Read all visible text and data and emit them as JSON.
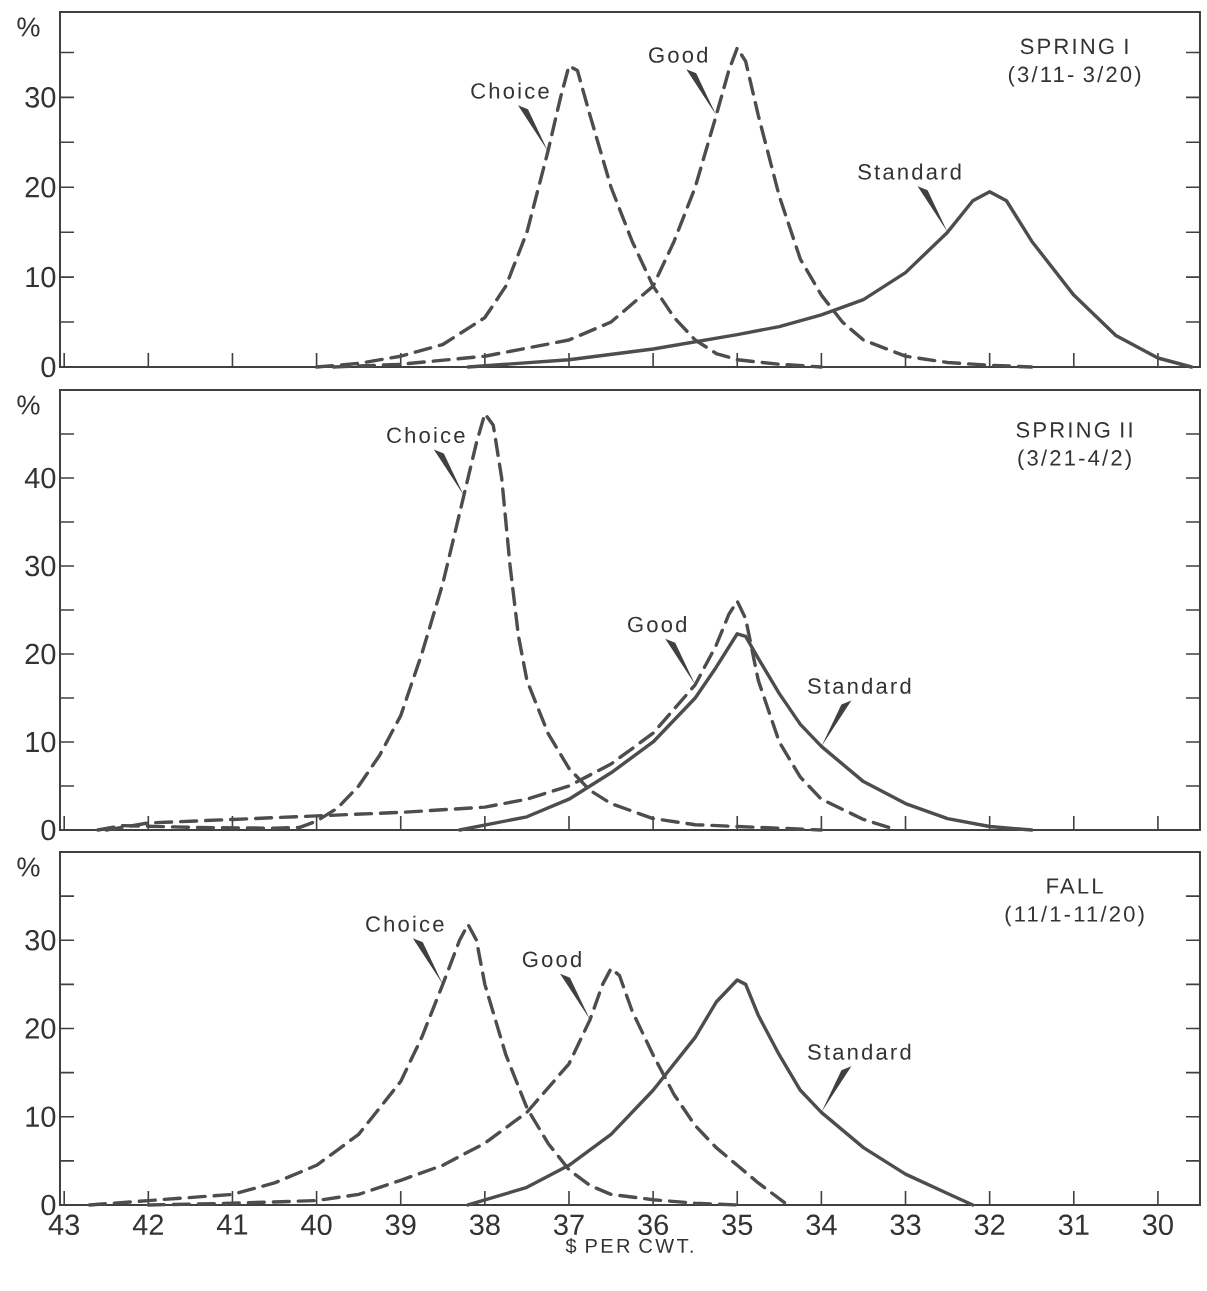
{
  "chart_data": [
    {
      "type": "line",
      "title": "SPRING I",
      "subtitle": "(3/11- 3/20)",
      "ylabel": "%",
      "xlim": [
        43.05,
        29.5
      ],
      "xticks": [
        43,
        42,
        41,
        40,
        39,
        38,
        37,
        36,
        35,
        34,
        33,
        32,
        31,
        30
      ],
      "ylim": [
        0,
        39.5
      ],
      "yticks": [
        0,
        {
          "value": 5,
          "label": null
        },
        10,
        {
          "value": 15,
          "label": null
        },
        20,
        {
          "value": 25,
          "label": null
        },
        30,
        {
          "value": 35,
          "label": null
        }
      ],
      "tick_labels": "y",
      "series": [
        {
          "name": "Choice",
          "color": "#4d4d4d",
          "line_style": "dashed",
          "x": [
            40,
            39.5,
            39,
            38.5,
            38,
            37.75,
            37.5,
            37.25,
            37.1,
            37,
            36.9,
            36.75,
            36.5,
            36.25,
            36,
            35.75,
            35.5,
            35.25,
            35,
            34.5,
            34
          ],
          "values": [
            0,
            0.4,
            1.2,
            2.5,
            5.5,
            9,
            15,
            24,
            30,
            33.5,
            33,
            28,
            20,
            14,
            9,
            5.5,
            3,
            1.5,
            0.8,
            0.3,
            0
          ]
        },
        {
          "name": "Good",
          "color": "#4d4d4d",
          "line_style": "dashed",
          "x": [
            39.8,
            39,
            38,
            37,
            36.5,
            36,
            35.75,
            35.5,
            35.25,
            35.1,
            35,
            34.9,
            34.75,
            34.5,
            34.25,
            34,
            33.75,
            33.5,
            33,
            32.5,
            32,
            31.5
          ],
          "values": [
            0,
            0.3,
            1.2,
            3,
            5,
            9,
            14,
            20,
            28,
            33,
            35.5,
            34,
            28,
            19,
            12,
            8,
            5,
            3,
            1.2,
            0.5,
            0.2,
            0
          ]
        },
        {
          "name": "Standard",
          "color": "#4d4d4d",
          "line_style": "solid",
          "x": [
            38.2,
            37,
            36,
            35,
            34.5,
            34,
            33.5,
            33,
            32.5,
            32.2,
            32,
            31.8,
            31.5,
            31,
            30.5,
            30,
            29.6
          ],
          "values": [
            0,
            0.8,
            2,
            3.6,
            4.5,
            5.8,
            7.5,
            10.5,
            15,
            18.5,
            19.5,
            18.5,
            14,
            8,
            3.5,
            1,
            0
          ]
        }
      ]
    },
    {
      "type": "line",
      "title": "SPRING II",
      "subtitle": "(3/21-4/2)",
      "ylabel": "%",
      "xlim": [
        43.05,
        29.5
      ],
      "xticks": [
        43,
        42,
        41,
        40,
        39,
        38,
        37,
        36,
        35,
        34,
        33,
        32,
        31,
        30
      ],
      "ylim": [
        0,
        50
      ],
      "yticks": [
        0,
        {
          "value": 5,
          "label": null
        },
        10,
        {
          "value": 15,
          "label": null
        },
        20,
        {
          "value": 25,
          "label": null
        },
        30,
        {
          "value": 35,
          "label": null
        },
        40,
        {
          "value": 45,
          "label": null
        }
      ],
      "tick_labels": "y",
      "series": [
        {
          "name": "Choice",
          "color": "#4d4d4d",
          "line_style": "dashed",
          "x": [
            42.6,
            42.3,
            41.5,
            40.5,
            40.2,
            40,
            39.75,
            39.5,
            39.25,
            39,
            38.75,
            38.5,
            38.25,
            38.1,
            38,
            37.9,
            37.8,
            37.7,
            37.6,
            37.5,
            37.25,
            37,
            36.75,
            36.5,
            36,
            35.5,
            35,
            34.5,
            34
          ],
          "values": [
            0,
            0.5,
            0.3,
            0.2,
            0.3,
            1,
            2.5,
            5,
            8.5,
            13,
            20,
            28,
            38,
            44,
            47.3,
            46,
            40,
            30,
            22,
            17,
            11,
            7,
            4.5,
            3,
            1.3,
            0.6,
            0.4,
            0.2,
            0
          ]
        },
        {
          "name": "Good",
          "color": "#4d4d4d",
          "line_style": "dashed",
          "x": [
            42.5,
            42,
            41,
            40,
            39,
            38,
            37.5,
            37,
            36.5,
            36,
            35.5,
            35.25,
            35.1,
            35,
            34.9,
            34.75,
            34.5,
            34.25,
            34,
            33.5,
            33.1
          ],
          "values": [
            0,
            0.8,
            1.2,
            1.6,
            2,
            2.6,
            3.5,
            5,
            7.5,
            11,
            16.5,
            21,
            24.5,
            26,
            24,
            17,
            10,
            6,
            3.5,
            1.2,
            0
          ]
        },
        {
          "name": "Standard",
          "color": "#4d4d4d",
          "line_style": "solid",
          "x": [
            38.3,
            37.5,
            37,
            36.5,
            36,
            35.5,
            35.25,
            35,
            34.9,
            34.75,
            34.5,
            34.25,
            34,
            33.5,
            33,
            32.5,
            32,
            31.5
          ],
          "values": [
            0,
            1.5,
            3.5,
            6.5,
            10,
            15,
            18.5,
            22.3,
            22,
            19.5,
            15.5,
            12,
            9.5,
            5.5,
            3,
            1.3,
            0.4,
            0
          ]
        }
      ]
    },
    {
      "type": "line",
      "title": "FALL",
      "subtitle": "(11/1-11/20)",
      "ylabel": "%",
      "xlabel": "$ PER CWT.",
      "xlim": [
        43.05,
        29.5
      ],
      "xticks": [
        43,
        42,
        41,
        40,
        39,
        38,
        37,
        36,
        35,
        34,
        33,
        32,
        31,
        30
      ],
      "ylim": [
        0,
        40
      ],
      "yticks": [
        0,
        {
          "value": 5,
          "label": null
        },
        10,
        {
          "value": 15,
          "label": null
        },
        20,
        {
          "value": 25,
          "label": null
        },
        30,
        {
          "value": 35,
          "label": null
        }
      ],
      "series": [
        {
          "name": "Choice",
          "color": "#4d4d4d",
          "line_style": "dashed",
          "x": [
            42.7,
            42,
            41,
            40.5,
            40,
            39.5,
            39,
            38.75,
            38.5,
            38.3,
            38.2,
            38.1,
            38,
            37.75,
            37.5,
            37.25,
            37,
            36.75,
            36.5,
            36,
            35.5,
            35
          ],
          "values": [
            0,
            0.5,
            1.2,
            2.5,
            4.5,
            8,
            14,
            19,
            25,
            30,
            31.8,
            30,
            25,
            17,
            11,
            7,
            4,
            2.2,
            1.2,
            0.6,
            0.2,
            0
          ]
        },
        {
          "name": "Good",
          "color": "#4d4d4d",
          "line_style": "dashed",
          "x": [
            42,
            41,
            40,
            39.5,
            39,
            38.5,
            38,
            37.5,
            37,
            36.75,
            36.6,
            36.5,
            36.4,
            36.25,
            36,
            35.75,
            35.5,
            35.25,
            35,
            34.75,
            34.4
          ],
          "values": [
            0,
            0.2,
            0.5,
            1.2,
            2.8,
            4.5,
            7,
            10.5,
            16,
            21,
            25,
            26.8,
            26,
            22,
            17,
            12.5,
            9,
            6.5,
            4.5,
            2.5,
            0
          ]
        },
        {
          "name": "Standard",
          "color": "#4d4d4d",
          "line_style": "solid",
          "x": [
            38.2,
            37.5,
            37,
            36.5,
            36,
            35.5,
            35.25,
            35,
            34.9,
            34.75,
            34.5,
            34.25,
            34,
            33.5,
            33,
            32.5,
            32.2
          ],
          "values": [
            0,
            2,
            4.5,
            8,
            13,
            19,
            23,
            25.5,
            25,
            21.5,
            17,
            13,
            10.5,
            6.5,
            3.5,
            1.3,
            0
          ]
        }
      ]
    }
  ]
}
